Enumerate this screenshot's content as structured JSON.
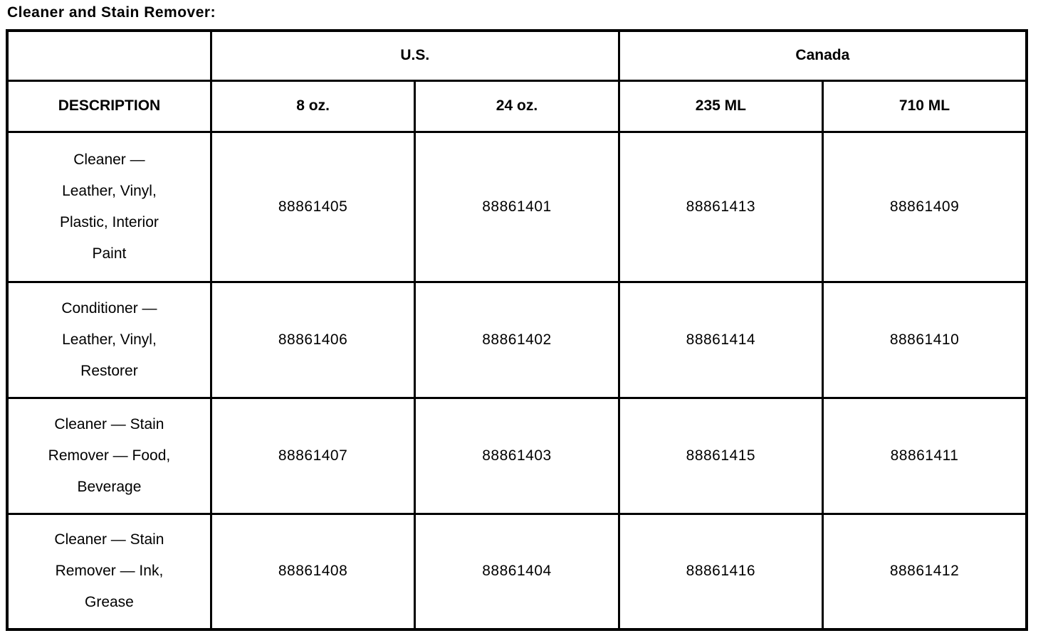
{
  "title": "Cleaner and Stain Remover:",
  "table": {
    "corner_label": "",
    "group_headers": [
      "U.S.",
      "Canada"
    ],
    "column_headers": [
      "DESCRIPTION",
      "8 oz.",
      "24 oz.",
      "235 ML",
      "710 ML"
    ],
    "rows": [
      {
        "description": "Cleaner —\nLeather, Vinyl,\nPlastic, Interior\nPaint",
        "part_numbers": [
          "88861405",
          "88861401",
          "88861413",
          "88861409"
        ]
      },
      {
        "description": "Conditioner —\nLeather, Vinyl,\nRestorer",
        "part_numbers": [
          "88861406",
          "88861402",
          "88861414",
          "88861410"
        ]
      },
      {
        "description": "Cleaner — Stain\nRemover — Food,\nBeverage",
        "part_numbers": [
          "88861407",
          "88861403",
          "88861415",
          "88861411"
        ]
      },
      {
        "description": "Cleaner — Stain\nRemover — Ink,\nGrease",
        "part_numbers": [
          "88861408",
          "88861404",
          "88861416",
          "88861412"
        ]
      }
    ]
  }
}
